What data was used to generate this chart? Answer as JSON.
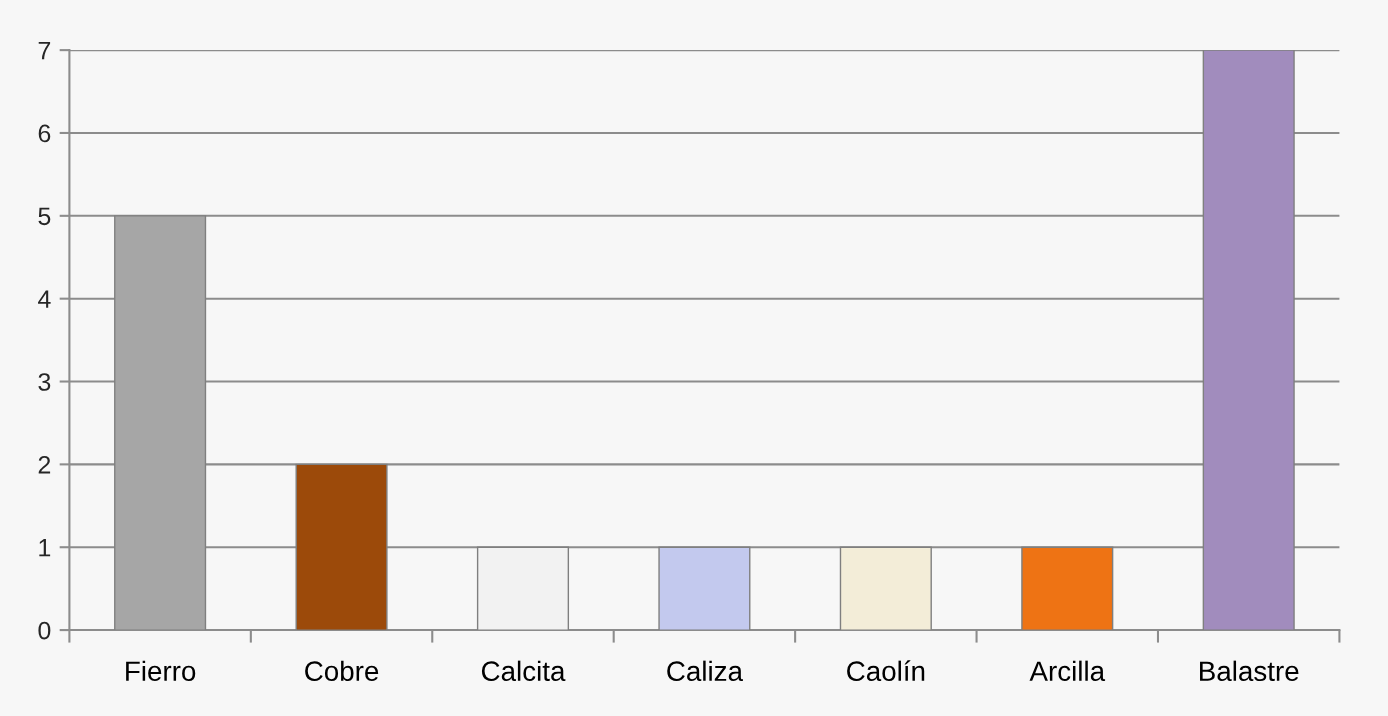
{
  "chart_data": {
    "type": "bar",
    "categories": [
      "Fierro",
      "Cobre",
      "Calcita",
      "Caliza",
      "Caolín",
      "Arcilla",
      "Balastre"
    ],
    "values": [
      5,
      2,
      1,
      1,
      1,
      1,
      7
    ],
    "colors": [
      "#a6a6a6",
      "#9c4a0a",
      "#f2f2f2",
      "#c3c9ee",
      "#f3edd8",
      "#ee7314",
      "#a18cbd"
    ],
    "ylim": [
      0,
      7
    ],
    "yticks": [
      0,
      1,
      2,
      3,
      4,
      5,
      6,
      7
    ],
    "grid": "y"
  }
}
